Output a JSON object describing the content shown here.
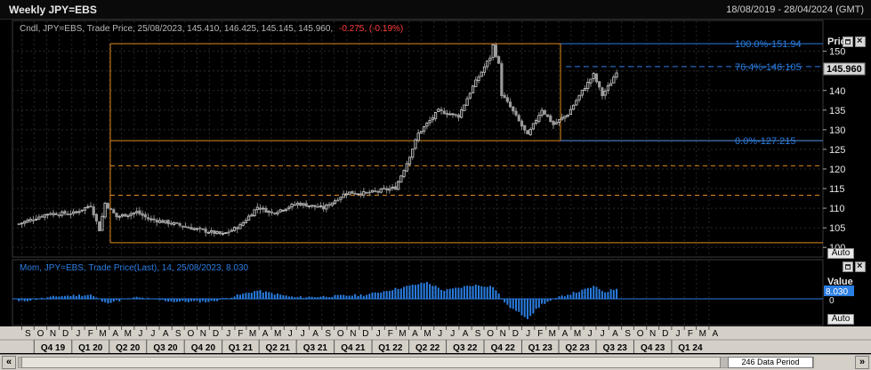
{
  "window": {
    "title": "Weekly JPY=EBS",
    "date_range": "18/08/2019 - 28/04/2024 (GMT)"
  },
  "price_panel": {
    "legend_prefix": "Cndl, JPY=EBS, Trade Price, 25/08/2023, 145.410, 146.425, 145.145, 145.960,",
    "legend_change": "-0.275, (-0.19%)",
    "axis_title": "Price",
    "last_price_label": "145.960",
    "auto_label": "Auto",
    "y_ticks": [
      100,
      105,
      110,
      115,
      120,
      125,
      130,
      135,
      140,
      145,
      150
    ],
    "fib_labels": [
      {
        "text": "100.0%-151.94",
        "value": 151.94
      },
      {
        "text": "76.4%-146.105",
        "value": 146.105
      },
      {
        "text": "0.0%-127.215",
        "value": 127.215
      }
    ]
  },
  "momentum_panel": {
    "legend": "Mom, JPY=EBS, Trade Price(Last), 14, 25/08/2023, 8.030",
    "axis_title": "Value",
    "last_value_label": "8.030",
    "zero_label": "0",
    "auto_label": "Auto"
  },
  "x_axis": {
    "months": [
      "S",
      "O",
      "N",
      "D",
      "J",
      "F",
      "M",
      "A",
      "M",
      "J",
      "J",
      "A",
      "S",
      "O",
      "N",
      "D",
      "J",
      "F",
      "M",
      "A",
      "M",
      "J",
      "J",
      "A",
      "S",
      "O",
      "N",
      "D",
      "J",
      "F",
      "M",
      "A",
      "M",
      "J",
      "J",
      "A",
      "S",
      "O",
      "N",
      "D",
      "J",
      "F",
      "M",
      "A",
      "M",
      "J",
      "J",
      "A",
      "S",
      "O",
      "N",
      "D",
      "J",
      "F",
      "M",
      "A"
    ],
    "quarters": [
      "Q4 19",
      "Q1 20",
      "Q2 20",
      "Q3 20",
      "Q4 20",
      "Q1 21",
      "Q2 21",
      "Q3 21",
      "Q4 21",
      "Q1 22",
      "Q2 22",
      "Q3 22",
      "Q4 22",
      "Q1 23",
      "Q2 23",
      "Q3 23",
      "Q4 23",
      "Q1 24"
    ]
  },
  "footer": {
    "data_period": "246 Data Period",
    "nav_first": "«",
    "nav_last": "»"
  },
  "colors": {
    "up_candle": "#cfcfcf",
    "down_candle": "#9a9a9a",
    "fib_line": "#2a7de1",
    "level_line": "#e08a1e",
    "momentum_bar": "#2a7de1",
    "change_negative": "#ff3b3b",
    "legend_text": "#b8b8b8"
  },
  "chart_data": [
    {
      "type": "candlestick",
      "title": "Weekly JPY=EBS",
      "ylabel": "Price",
      "ylim": [
        98,
        154
      ],
      "x_start": "2019-08-18",
      "weeks": 246,
      "grid": true,
      "close_series": [
        {
          "x": "2019-08-25",
          "y": 106.0
        },
        {
          "x": "2019-11-03",
          "y": 108.6
        },
        {
          "x": "2020-01-05",
          "y": 108.7
        },
        {
          "x": "2020-02-16",
          "y": 110.8
        },
        {
          "x": "2020-03-08",
          "y": 104.5
        },
        {
          "x": "2020-03-22",
          "y": 111.3
        },
        {
          "x": "2020-04-19",
          "y": 107.8
        },
        {
          "x": "2020-06-07",
          "y": 109.0
        },
        {
          "x": "2020-07-05",
          "y": 107.3
        },
        {
          "x": "2020-09-06",
          "y": 106.0
        },
        {
          "x": "2020-11-01",
          "y": 104.6
        },
        {
          "x": "2021-01-03",
          "y": 103.3
        },
        {
          "x": "2021-02-14",
          "y": 105.5
        },
        {
          "x": "2021-03-28",
          "y": 110.3
        },
        {
          "x": "2021-05-02",
          "y": 108.8
        },
        {
          "x": "2021-07-04",
          "y": 111.2
        },
        {
          "x": "2021-09-05",
          "y": 110.0
        },
        {
          "x": "2021-10-31",
          "y": 114.0
        },
        {
          "x": "2021-12-19",
          "y": 113.8
        },
        {
          "x": "2022-02-27",
          "y": 115.2
        },
        {
          "x": "2022-03-27",
          "y": 121.5
        },
        {
          "x": "2022-04-24",
          "y": 129.0
        },
        {
          "x": "2022-06-12",
          "y": 134.8
        },
        {
          "x": "2022-07-31",
          "y": 133.5
        },
        {
          "x": "2022-09-04",
          "y": 141.0
        },
        {
          "x": "2022-10-16",
          "y": 148.5
        },
        {
          "x": "2022-10-23",
          "y": 151.5
        },
        {
          "x": "2022-11-06",
          "y": 146.6
        },
        {
          "x": "2022-11-13",
          "y": 139.0
        },
        {
          "x": "2022-12-04",
          "y": 135.8
        },
        {
          "x": "2023-01-15",
          "y": 128.5
        },
        {
          "x": "2023-02-19",
          "y": 135.2
        },
        {
          "x": "2023-03-19",
          "y": 131.3
        },
        {
          "x": "2023-04-23",
          "y": 134.0
        },
        {
          "x": "2023-05-28",
          "y": 139.8
        },
        {
          "x": "2023-06-25",
          "y": 144.0
        },
        {
          "x": "2023-07-16",
          "y": 138.8
        },
        {
          "x": "2023-08-06",
          "y": 142.0
        },
        {
          "x": "2023-08-25",
          "y": 145.96
        }
      ],
      "levels": [
        151.94,
        127.215,
        120.8,
        113.3,
        101.2
      ],
      "fibonacci": [
        {
          "label": "100.0%",
          "value": 151.94
        },
        {
          "label": "76.4%",
          "value": 146.105
        },
        {
          "label": "0.0%",
          "value": 127.215
        }
      ]
    },
    {
      "type": "bar",
      "title": "Mom, JPY=EBS, Trade Price(Last), 14",
      "ylabel": "Value",
      "last_value": 8.03,
      "points": [
        {
          "x": "2019-08-25",
          "y": -2
        },
        {
          "x": "2019-12-01",
          "y": 2
        },
        {
          "x": "2020-02-16",
          "y": 3
        },
        {
          "x": "2020-03-22",
          "y": -3
        },
        {
          "x": "2020-06-07",
          "y": 1
        },
        {
          "x": "2020-09-06",
          "y": -2
        },
        {
          "x": "2020-12-06",
          "y": -2
        },
        {
          "x": "2021-03-28",
          "y": 6
        },
        {
          "x": "2021-06-27",
          "y": 1
        },
        {
          "x": "2021-09-26",
          "y": 2
        },
        {
          "x": "2021-12-19",
          "y": 3
        },
        {
          "x": "2022-03-27",
          "y": 9
        },
        {
          "x": "2022-05-15",
          "y": 12
        },
        {
          "x": "2022-06-26",
          "y": 6
        },
        {
          "x": "2022-09-04",
          "y": 10
        },
        {
          "x": "2022-10-23",
          "y": 9
        },
        {
          "x": "2022-11-27",
          "y": -5
        },
        {
          "x": "2023-01-15",
          "y": -14
        },
        {
          "x": "2023-02-19",
          "y": -4
        },
        {
          "x": "2023-04-09",
          "y": 2
        },
        {
          "x": "2023-05-28",
          "y": 6
        },
        {
          "x": "2023-06-25",
          "y": 9
        },
        {
          "x": "2023-07-23",
          "y": 5
        },
        {
          "x": "2023-08-25",
          "y": 8.03
        }
      ]
    }
  ]
}
